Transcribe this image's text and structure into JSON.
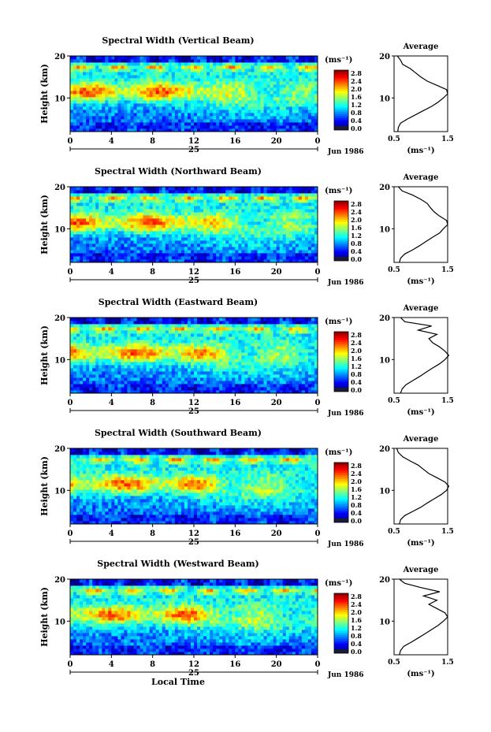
{
  "chart_data": [
    {
      "type": "heatmap",
      "title": "Spectral Width (Vertical Beam)",
      "ylabel": "Height (km)",
      "ylim": [
        2,
        20
      ],
      "yticks": [
        10,
        20
      ],
      "xlim": [
        0,
        24
      ],
      "xticks": [
        "0",
        "4",
        "8",
        "12",
        "16",
        "20",
        "0"
      ],
      "day_label": "25",
      "date_label": "Jun 1986",
      "colorbar": {
        "unit": "(ms⁻¹)",
        "ticks": [
          "2.8",
          "2.4",
          "2.0",
          "1.6",
          "1.2",
          "0.8",
          "0.4",
          "0.0"
        ]
      },
      "average": {
        "title": "Average",
        "xlabel": "(ms⁻¹)",
        "xlim": [
          0.5,
          1.5
        ],
        "xticks": [
          "0.5",
          "1.5"
        ],
        "ylim": [
          2,
          20
        ],
        "yticks": [
          10,
          20
        ],
        "profile": {
          "height": [
            2,
            3,
            4,
            5,
            6,
            7,
            8,
            9,
            10,
            11,
            12,
            13,
            14,
            15,
            16,
            17,
            18,
            19,
            20
          ],
          "width": [
            0.57,
            0.58,
            0.62,
            0.75,
            0.9,
            1.05,
            1.2,
            1.32,
            1.42,
            1.5,
            1.48,
            1.3,
            1.12,
            1.0,
            0.9,
            0.8,
            0.66,
            0.62,
            0.56
          ]
        }
      }
    },
    {
      "type": "heatmap",
      "title": "Spectral Width (Northward Beam)",
      "ylabel": "Height (km)",
      "ylim": [
        2,
        20
      ],
      "yticks": [
        10,
        20
      ],
      "xlim": [
        0,
        24
      ],
      "xticks": [
        "0",
        "4",
        "8",
        "12",
        "16",
        "20",
        "0"
      ],
      "day_label": "25",
      "date_label": "Jun 1986",
      "colorbar": {
        "unit": "(ms⁻¹)",
        "ticks": [
          "2.8",
          "2.4",
          "2.0",
          "1.6",
          "1.2",
          "0.8",
          "0.4",
          "0.0"
        ]
      },
      "average": {
        "title": "Average",
        "xlabel": "(ms⁻¹)",
        "xlim": [
          0.5,
          1.5
        ],
        "xticks": [
          "0.5",
          "1.5"
        ],
        "ylim": [
          2,
          20
        ],
        "yticks": [
          10,
          20
        ],
        "profile": {
          "height": [
            2,
            3,
            4,
            5,
            6,
            7,
            8,
            9,
            10,
            11,
            12,
            13,
            14,
            15,
            16,
            17,
            18,
            19,
            20
          ],
          "width": [
            0.6,
            0.62,
            0.7,
            0.85,
            0.98,
            1.1,
            1.22,
            1.35,
            1.42,
            1.5,
            1.48,
            1.35,
            1.25,
            1.18,
            1.12,
            1.0,
            0.85,
            0.65,
            0.58
          ]
        }
      }
    },
    {
      "type": "heatmap",
      "title": "Spectral Width (Eastward Beam)",
      "ylabel": "Height (km)",
      "ylim": [
        2,
        20
      ],
      "yticks": [
        10,
        20
      ],
      "xlim": [
        0,
        24
      ],
      "xticks": [
        "0",
        "4",
        "8",
        "12",
        "16",
        "20",
        "0"
      ],
      "day_label": "25",
      "date_label": "Jun 1986",
      "colorbar": {
        "unit": "(ms⁻¹)",
        "ticks": [
          "2.8",
          "2.4",
          "2.0",
          "1.6",
          "1.2",
          "0.8",
          "0.4",
          "0.0"
        ]
      },
      "average": {
        "title": "Average",
        "xlabel": "(ms⁻¹)",
        "xlim": [
          0.5,
          1.5
        ],
        "xticks": [
          "0.5",
          "1.5"
        ],
        "ylim": [
          2,
          20
        ],
        "yticks": [
          10,
          20
        ],
        "profile": {
          "height": [
            2,
            3,
            4,
            5,
            6,
            7,
            8,
            9,
            10,
            11,
            12,
            13,
            14,
            15,
            16,
            17,
            18,
            19,
            20
          ],
          "width": [
            0.62,
            0.65,
            0.72,
            0.85,
            0.98,
            1.1,
            1.22,
            1.35,
            1.45,
            1.52,
            1.45,
            1.35,
            1.22,
            1.15,
            1.3,
            0.95,
            1.2,
            0.7,
            0.62
          ]
        }
      }
    },
    {
      "type": "heatmap",
      "title": "Spectral Width (Southward Beam)",
      "ylabel": "Height (km)",
      "ylim": [
        2,
        20
      ],
      "yticks": [
        10,
        20
      ],
      "xlim": [
        0,
        24
      ],
      "xticks": [
        "0",
        "4",
        "8",
        "12",
        "16",
        "20",
        "0"
      ],
      "day_label": "25",
      "date_label": "Jun 1986",
      "colorbar": {
        "unit": "(ms⁻¹)",
        "ticks": [
          "2.8",
          "2.4",
          "2.0",
          "1.6",
          "1.2",
          "0.8",
          "0.4",
          "0.0"
        ]
      },
      "average": {
        "title": "Average",
        "xlabel": "(ms⁻¹)",
        "xlim": [
          0.5,
          1.5
        ],
        "xticks": [
          "0.5",
          "1.5"
        ],
        "ylim": [
          2,
          20
        ],
        "yticks": [
          10,
          20
        ],
        "profile": {
          "height": [
            2,
            3,
            4,
            5,
            6,
            7,
            8,
            9,
            10,
            11,
            12,
            13,
            14,
            15,
            16,
            17,
            18,
            19,
            20
          ],
          "width": [
            0.6,
            0.62,
            0.7,
            0.85,
            1.0,
            1.12,
            1.25,
            1.38,
            1.48,
            1.52,
            1.45,
            1.3,
            1.15,
            1.05,
            0.95,
            0.8,
            0.66,
            0.58,
            0.55
          ]
        }
      }
    },
    {
      "type": "heatmap",
      "title": "Spectral Width (Westward Beam)",
      "ylabel": "Height (km)",
      "ylim": [
        2,
        20
      ],
      "yticks": [
        10,
        20
      ],
      "xlim": [
        0,
        24
      ],
      "xticks": [
        "0",
        "4",
        "8",
        "12",
        "16",
        "20",
        "0"
      ],
      "day_label": "25",
      "date_label": "Jun 1986",
      "xlabel": "Local Time",
      "colorbar": {
        "unit": "(ms⁻¹)",
        "ticks": [
          "2.8",
          "2.4",
          "2.0",
          "1.6",
          "1.2",
          "0.8",
          "0.4",
          "0.0"
        ]
      },
      "average": {
        "title": "Average",
        "xlabel": "(ms⁻¹)",
        "xlim": [
          0.5,
          1.5
        ],
        "xticks": [
          "0.5",
          "1.5"
        ],
        "ylim": [
          2,
          20
        ],
        "yticks": [
          10,
          20
        ],
        "profile": {
          "height": [
            2,
            3,
            4,
            5,
            6,
            7,
            8,
            9,
            10,
            11,
            12,
            13,
            14,
            15,
            16,
            17,
            18,
            19,
            20
          ],
          "width": [
            0.6,
            0.62,
            0.68,
            0.82,
            0.95,
            1.08,
            1.2,
            1.32,
            1.42,
            1.5,
            1.45,
            1.3,
            1.15,
            1.3,
            1.05,
            1.35,
            1.0,
            0.7,
            0.6
          ]
        }
      }
    }
  ]
}
